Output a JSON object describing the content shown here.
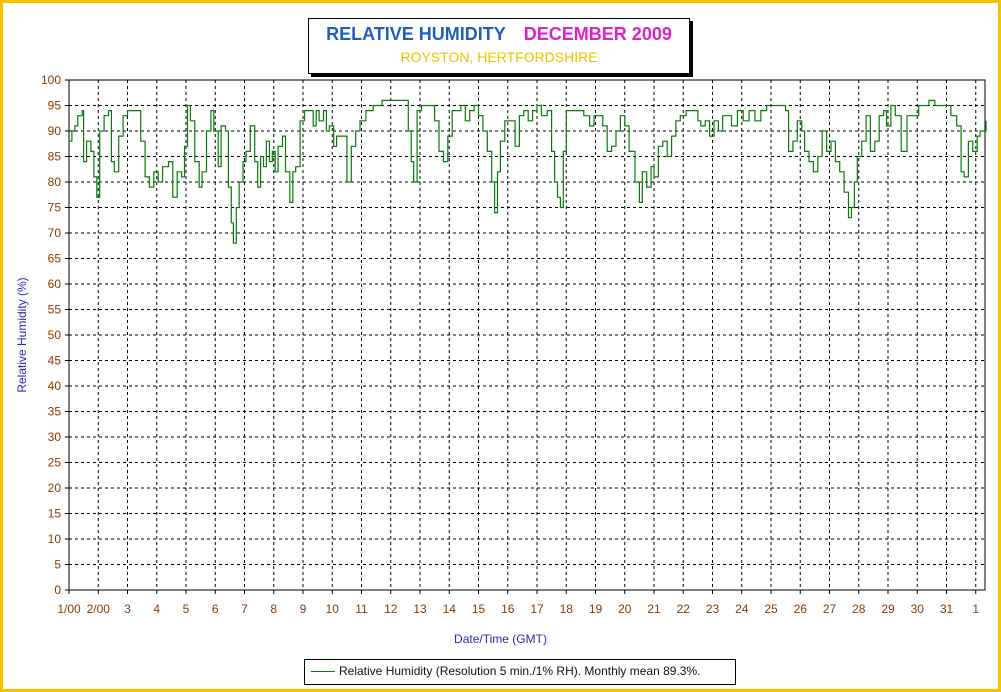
{
  "chart_data": {
    "type": "line",
    "title": "RELATIVE HUMIDITY",
    "title_month": "DECEMBER 2009",
    "subtitle": "ROYSTON, HERTFORDSHIRE",
    "xlabel": "Date/Time (GMT)",
    "ylabel": "Relative Humidity (%)",
    "ylim": [
      0,
      100
    ],
    "y_ticks": [
      0,
      5,
      10,
      15,
      20,
      25,
      30,
      35,
      40,
      45,
      50,
      55,
      60,
      65,
      70,
      75,
      80,
      85,
      90,
      95,
      100
    ],
    "x_tick_labels": [
      "1/00",
      "2/00",
      "3",
      "4",
      "5",
      "6",
      "7",
      "8",
      "9",
      "10",
      "11",
      "12",
      "13",
      "14",
      "15",
      "16",
      "17",
      "18",
      "19",
      "20",
      "21",
      "22",
      "23",
      "24",
      "25",
      "26",
      "27",
      "28",
      "29",
      "30",
      "31",
      "1"
    ],
    "x_range_days": [
      1,
      32.35
    ],
    "grid": true,
    "series": [
      {
        "name": "Relative Humidity (Resolution 5 min./1% RH). Monthly mean 89.3%.",
        "color": "#0a7a0a",
        "points": [
          [
            1.0,
            88
          ],
          [
            1.1,
            90
          ],
          [
            1.2,
            91
          ],
          [
            1.3,
            93
          ],
          [
            1.45,
            94
          ],
          [
            1.5,
            84
          ],
          [
            1.6,
            88
          ],
          [
            1.75,
            86
          ],
          [
            1.85,
            81
          ],
          [
            1.95,
            77
          ],
          [
            2.05,
            90
          ],
          [
            2.2,
            93
          ],
          [
            2.35,
            94
          ],
          [
            2.45,
            84
          ],
          [
            2.55,
            82
          ],
          [
            2.7,
            89
          ],
          [
            2.85,
            93
          ],
          [
            3.0,
            94
          ],
          [
            3.2,
            94
          ],
          [
            3.45,
            88
          ],
          [
            3.6,
            81
          ],
          [
            3.75,
            79
          ],
          [
            3.9,
            82
          ],
          [
            4.05,
            80
          ],
          [
            4.2,
            83
          ],
          [
            4.4,
            84
          ],
          [
            4.55,
            77
          ],
          [
            4.7,
            82
          ],
          [
            4.85,
            81
          ],
          [
            4.95,
            87
          ],
          [
            5.05,
            95
          ],
          [
            5.15,
            92
          ],
          [
            5.3,
            84
          ],
          [
            5.45,
            79
          ],
          [
            5.55,
            82
          ],
          [
            5.7,
            90
          ],
          [
            5.85,
            94
          ],
          [
            5.95,
            90
          ],
          [
            6.1,
            83
          ],
          [
            6.2,
            91
          ],
          [
            6.35,
            90
          ],
          [
            6.45,
            79
          ],
          [
            6.55,
            72
          ],
          [
            6.62,
            68
          ],
          [
            6.72,
            75
          ],
          [
            6.82,
            80
          ],
          [
            6.95,
            84
          ],
          [
            7.05,
            86
          ],
          [
            7.2,
            91
          ],
          [
            7.35,
            84
          ],
          [
            7.45,
            79
          ],
          [
            7.55,
            85
          ],
          [
            7.65,
            83
          ],
          [
            7.75,
            88
          ],
          [
            7.85,
            84
          ],
          [
            7.95,
            86
          ],
          [
            8.05,
            82
          ],
          [
            8.15,
            87
          ],
          [
            8.3,
            89
          ],
          [
            8.4,
            82
          ],
          [
            8.55,
            76
          ],
          [
            8.65,
            82
          ],
          [
            8.75,
            83
          ],
          [
            8.9,
            92
          ],
          [
            9.05,
            94
          ],
          [
            9.2,
            94
          ],
          [
            9.35,
            91
          ],
          [
            9.45,
            94
          ],
          [
            9.55,
            92
          ],
          [
            9.7,
            94
          ],
          [
            9.8,
            90
          ],
          [
            9.9,
            91
          ],
          [
            10.05,
            87
          ],
          [
            10.15,
            89
          ],
          [
            10.35,
            89
          ],
          [
            10.5,
            80
          ],
          [
            10.65,
            87
          ],
          [
            10.8,
            90
          ],
          [
            10.95,
            92
          ],
          [
            11.15,
            94
          ],
          [
            11.4,
            95
          ],
          [
            11.7,
            96
          ],
          [
            12.0,
            96
          ],
          [
            12.2,
            96
          ],
          [
            12.45,
            96
          ],
          [
            12.6,
            90
          ],
          [
            12.7,
            84
          ],
          [
            12.78,
            80
          ],
          [
            12.9,
            94
          ],
          [
            13.05,
            95
          ],
          [
            13.3,
            95
          ],
          [
            13.5,
            92
          ],
          [
            13.65,
            86
          ],
          [
            13.8,
            84
          ],
          [
            13.95,
            89
          ],
          [
            14.1,
            94
          ],
          [
            14.25,
            94
          ],
          [
            14.4,
            95
          ],
          [
            14.55,
            92
          ],
          [
            14.7,
            94
          ],
          [
            14.85,
            95
          ],
          [
            15.0,
            93
          ],
          [
            15.15,
            90
          ],
          [
            15.3,
            86
          ],
          [
            15.45,
            80
          ],
          [
            15.55,
            74
          ],
          [
            15.65,
            82
          ],
          [
            15.75,
            88
          ],
          [
            15.9,
            92
          ],
          [
            16.1,
            92
          ],
          [
            16.25,
            87
          ],
          [
            16.4,
            93
          ],
          [
            16.55,
            94
          ],
          [
            16.7,
            92
          ],
          [
            16.85,
            94
          ],
          [
            17.0,
            95
          ],
          [
            17.15,
            93
          ],
          [
            17.35,
            94
          ],
          [
            17.5,
            86
          ],
          [
            17.6,
            80
          ],
          [
            17.7,
            77
          ],
          [
            17.8,
            75
          ],
          [
            17.9,
            86
          ],
          [
            18.0,
            94
          ],
          [
            18.3,
            94
          ],
          [
            18.6,
            93
          ],
          [
            18.8,
            91
          ],
          [
            18.95,
            93
          ],
          [
            19.1,
            93
          ],
          [
            19.25,
            91
          ],
          [
            19.4,
            86
          ],
          [
            19.55,
            87
          ],
          [
            19.7,
            90
          ],
          [
            19.85,
            93
          ],
          [
            20.0,
            91
          ],
          [
            20.15,
            86
          ],
          [
            20.35,
            80
          ],
          [
            20.5,
            76
          ],
          [
            20.6,
            82
          ],
          [
            20.75,
            79
          ],
          [
            20.9,
            83
          ],
          [
            21.0,
            81
          ],
          [
            21.15,
            87
          ],
          [
            21.3,
            88
          ],
          [
            21.45,
            85
          ],
          [
            21.6,
            89
          ],
          [
            21.75,
            92
          ],
          [
            21.9,
            93
          ],
          [
            22.1,
            94
          ],
          [
            22.3,
            94
          ],
          [
            22.5,
            92
          ],
          [
            22.6,
            91
          ],
          [
            22.75,
            92
          ],
          [
            22.9,
            89
          ],
          [
            23.05,
            92
          ],
          [
            23.2,
            90
          ],
          [
            23.35,
            93
          ],
          [
            23.5,
            93
          ],
          [
            23.65,
            91
          ],
          [
            23.85,
            94
          ],
          [
            24.05,
            92
          ],
          [
            24.25,
            94
          ],
          [
            24.45,
            92
          ],
          [
            24.65,
            94
          ],
          [
            24.85,
            95
          ],
          [
            25.05,
            95
          ],
          [
            25.3,
            95
          ],
          [
            25.5,
            94
          ],
          [
            25.6,
            86
          ],
          [
            25.75,
            88
          ],
          [
            25.9,
            92
          ],
          [
            26.05,
            90
          ],
          [
            26.15,
            86
          ],
          [
            26.3,
            84
          ],
          [
            26.45,
            82
          ],
          [
            26.6,
            85
          ],
          [
            26.75,
            90
          ],
          [
            26.9,
            86
          ],
          [
            27.05,
            88
          ],
          [
            27.2,
            84
          ],
          [
            27.35,
            82
          ],
          [
            27.5,
            78
          ],
          [
            27.65,
            73
          ],
          [
            27.75,
            75
          ],
          [
            27.85,
            80
          ],
          [
            27.95,
            85
          ],
          [
            28.1,
            88
          ],
          [
            28.25,
            93
          ],
          [
            28.4,
            86
          ],
          [
            28.55,
            88
          ],
          [
            28.7,
            93
          ],
          [
            28.85,
            94
          ],
          [
            28.95,
            91
          ],
          [
            29.1,
            95
          ],
          [
            29.25,
            93
          ],
          [
            29.45,
            86
          ],
          [
            29.65,
            93
          ],
          [
            29.85,
            93
          ],
          [
            30.05,
            95
          ],
          [
            30.25,
            95
          ],
          [
            30.4,
            96
          ],
          [
            30.6,
            95
          ],
          [
            30.8,
            95
          ],
          [
            31.0,
            95
          ],
          [
            31.15,
            93
          ],
          [
            31.35,
            91
          ],
          [
            31.5,
            82
          ],
          [
            31.6,
            81
          ],
          [
            31.75,
            88
          ],
          [
            31.9,
            86
          ],
          [
            32.05,
            89
          ],
          [
            32.15,
            90
          ],
          [
            32.25,
            90
          ],
          [
            32.35,
            92
          ]
        ]
      }
    ]
  }
}
